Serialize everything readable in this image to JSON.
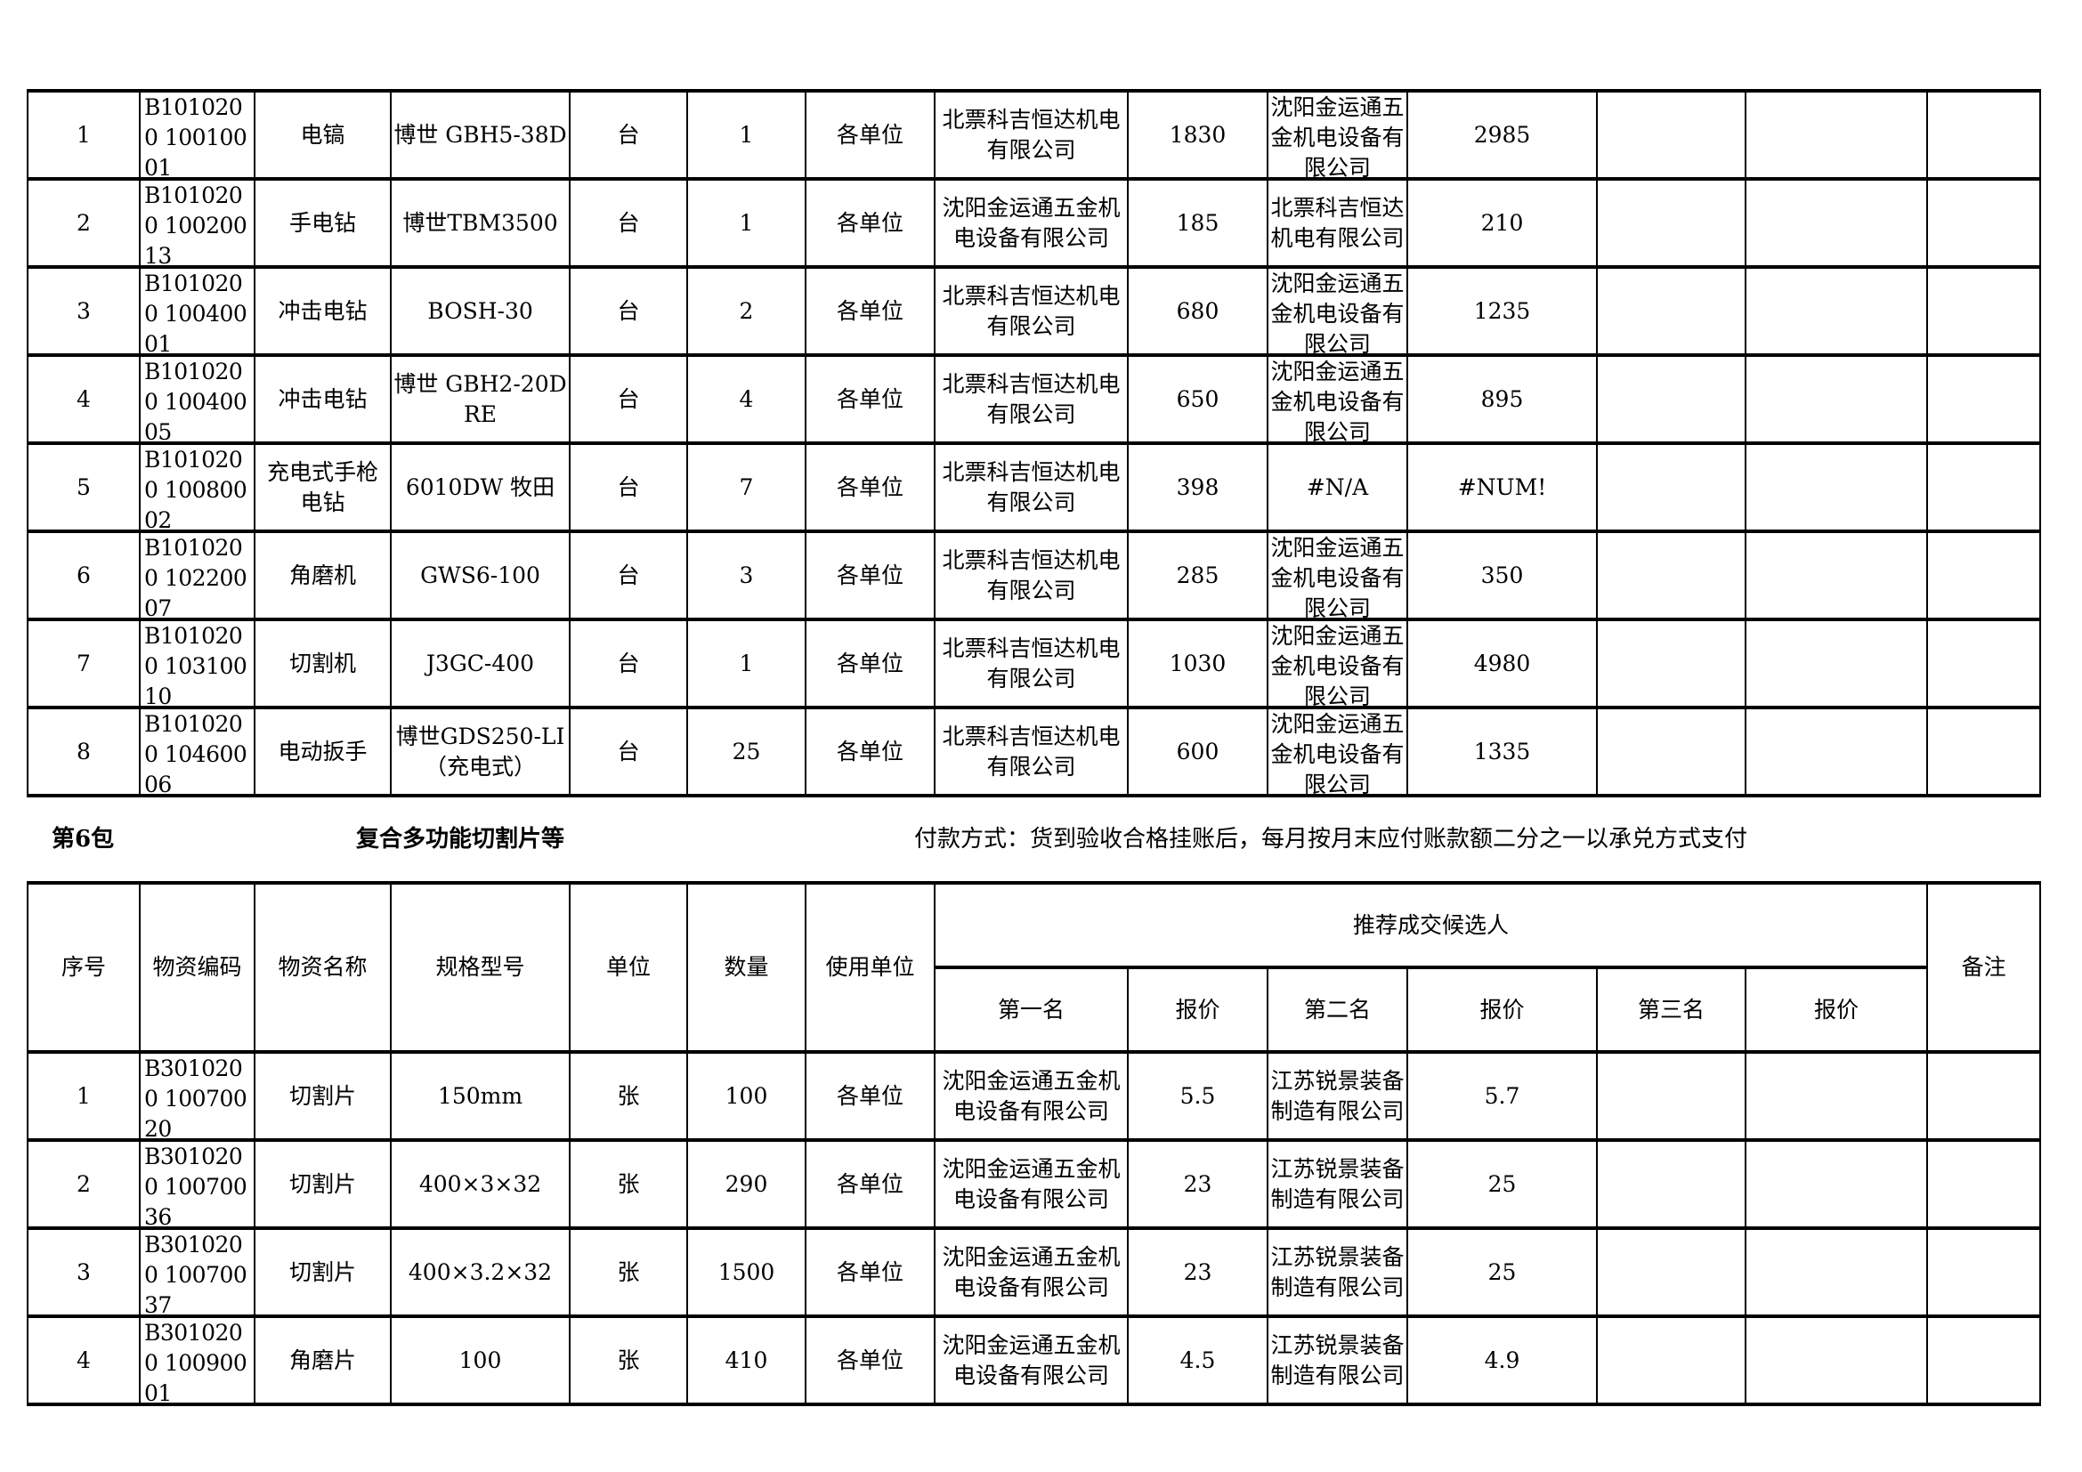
{
  "columns_widths_note": null,
  "top_table": {
    "rows": [
      {
        "no": "1",
        "code": "B1010200 10010001",
        "name": "电镐",
        "spec": "博世 GBH5-38D",
        "unit": "台",
        "qty": "1",
        "user": "各单位",
        "first": "北票科吉恒达机电有限公司",
        "price1": "1830",
        "second": "沈阳金运通五金机电设备有限公司",
        "price2": "2985",
        "third": "",
        "price3": "",
        "remark": ""
      },
      {
        "no": "2",
        "code": "B1010200 10020013",
        "name": "手电钻",
        "spec": "博世TBM3500",
        "unit": "台",
        "qty": "1",
        "user": "各单位",
        "first": "沈阳金运通五金机电设备有限公司",
        "price1": "185",
        "second": "北票科吉恒达机电有限公司",
        "price2": "210",
        "third": "",
        "price3": "",
        "remark": ""
      },
      {
        "no": "3",
        "code": "B1010200 10040001",
        "name": "冲击电钻",
        "spec": "BOSH-30",
        "unit": "台",
        "qty": "2",
        "user": "各单位",
        "first": "北票科吉恒达机电有限公司",
        "price1": "680",
        "second": "沈阳金运通五金机电设备有限公司",
        "price2": "1235",
        "third": "",
        "price3": "",
        "remark": ""
      },
      {
        "no": "4",
        "code": "B1010200 10040005",
        "name": "冲击电钻",
        "spec": "博世 GBH2-20DRE",
        "unit": "台",
        "qty": "4",
        "user": "各单位",
        "first": "北票科吉恒达机电有限公司",
        "price1": "650",
        "second": "沈阳金运通五金机电设备有限公司",
        "price2": "895",
        "third": "",
        "price3": "",
        "remark": ""
      },
      {
        "no": "5",
        "code": "B1010200 10080002",
        "name": "充电式手枪电钻",
        "spec": "6010DW 牧田",
        "unit": "台",
        "qty": "7",
        "user": "各单位",
        "first": "北票科吉恒达机电有限公司",
        "price1": "398",
        "second": "#N/A",
        "price2": "#NUM!",
        "third": "",
        "price3": "",
        "remark": ""
      },
      {
        "no": "6",
        "code": "B1010200 10220007",
        "name": "角磨机",
        "spec": "GWS6-100",
        "unit": "台",
        "qty": "3",
        "user": "各单位",
        "first": "北票科吉恒达机电有限公司",
        "price1": "285",
        "second": "沈阳金运通五金机电设备有限公司",
        "price2": "350",
        "third": "",
        "price3": "",
        "remark": ""
      },
      {
        "no": "7",
        "code": "B1010200 10310010",
        "name": "切割机",
        "spec": "J3GC-400",
        "unit": "台",
        "qty": "1",
        "user": "各单位",
        "first": "北票科吉恒达机电有限公司",
        "price1": "1030",
        "second": "沈阳金运通五金机电设备有限公司",
        "price2": "4980",
        "third": "",
        "price3": "",
        "remark": ""
      },
      {
        "no": "8",
        "code": "B1010200 10460006",
        "name": "电动扳手",
        "spec": "博世GDS250-LI（充电式）",
        "unit": "台",
        "qty": "25",
        "user": "各单位",
        "first": "北票科吉恒达机电有限公司",
        "price1": "600",
        "second": "沈阳金运通五金机电设备有限公司",
        "price2": "1335",
        "third": "",
        "price3": "",
        "remark": ""
      }
    ]
  },
  "section": {
    "package": "第6包",
    "title": "复合多功能切割片等",
    "payment": "付款方式：货到验收合格挂账后，每月按月末应付账款额二分之一以承兑方式支付"
  },
  "bottom_table": {
    "headers": {
      "no": "序号",
      "code": "物资编码",
      "name": "物资名称",
      "spec": "规格型号",
      "unit": "单位",
      "qty": "数量",
      "user": "使用单位",
      "candidates": "推荐成交候选人",
      "first": "第一名",
      "price1": "报价",
      "second": "第二名",
      "price2": "报价",
      "third": "第三名",
      "price3": "报价",
      "remark": "备注"
    },
    "rows": [
      {
        "no": "1",
        "code": "B3010200 10070020",
        "name": "切割片",
        "spec": "150mm",
        "unit": "张",
        "qty": "100",
        "user": "各单位",
        "first": "沈阳金运通五金机电设备有限公司",
        "price1": "5.5",
        "second": "江苏锐景装备制造有限公司",
        "price2": "5.7",
        "third": "",
        "price3": "",
        "remark": ""
      },
      {
        "no": "2",
        "code": "B3010200 10070036",
        "name": "切割片",
        "spec": "400×3×32",
        "unit": "张",
        "qty": "290",
        "user": "各单位",
        "first": "沈阳金运通五金机电设备有限公司",
        "price1": "23",
        "second": "江苏锐景装备制造有限公司",
        "price2": "25",
        "third": "",
        "price3": "",
        "remark": ""
      },
      {
        "no": "3",
        "code": "B3010200 10070037",
        "name": "切割片",
        "spec": "400×3.2×32",
        "unit": "张",
        "qty": "1500",
        "user": "各单位",
        "first": "沈阳金运通五金机电设备有限公司",
        "price1": "23",
        "second": "江苏锐景装备制造有限公司",
        "price2": "25",
        "third": "",
        "price3": "",
        "remark": ""
      },
      {
        "no": "4",
        "code": "B3010200 10090001",
        "name": "角磨片",
        "spec": "100",
        "unit": "张",
        "qty": "410",
        "user": "各单位",
        "first": "沈阳金运通五金机电设备有限公司",
        "price1": "4.5",
        "second": "江苏锐景装备制造有限公司",
        "price2": "4.9",
        "third": "",
        "price3": "",
        "remark": ""
      }
    ]
  }
}
